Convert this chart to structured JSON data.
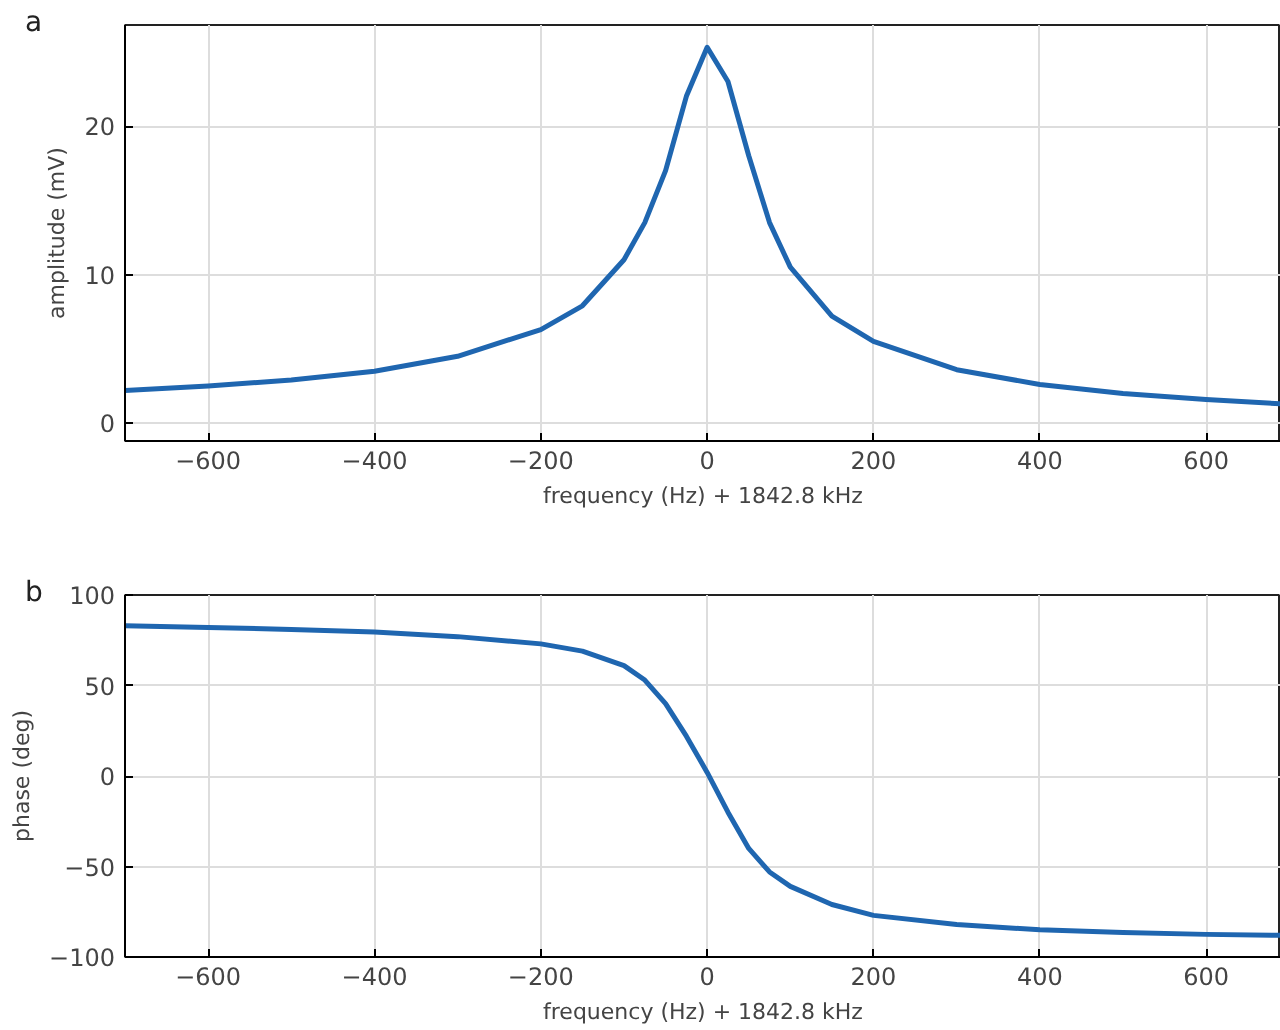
{
  "chart_data": [
    {
      "type": "line",
      "title": "a",
      "xlabel": "frequency (Hz) + 1842.8 kHz",
      "ylabel": "amplitude (mV)",
      "xlim": [
        -700,
        690
      ],
      "ylim": [
        -1.2,
        26.8
      ],
      "xticks": [
        -600,
        -400,
        -200,
        0,
        200,
        400,
        600
      ],
      "yticks": [
        0,
        10,
        20
      ],
      "grid": true,
      "line_style": "solid",
      "series": [
        {
          "color": "#1f66b0",
          "x": [
            -700,
            -600,
            -500,
            -400,
            -300,
            -200,
            -150,
            -100,
            -75,
            -50,
            -25,
            0,
            25,
            50,
            75,
            100,
            150,
            200,
            300,
            400,
            500,
            600,
            690
          ],
          "values": [
            2.2,
            2.5,
            2.9,
            3.5,
            4.5,
            6.3,
            7.9,
            11,
            13.5,
            17,
            22,
            25.3,
            23,
            18,
            13.5,
            10.5,
            7.2,
            5.5,
            3.6,
            2.6,
            2.0,
            1.6,
            1.3
          ]
        }
      ]
    },
    {
      "type": "line",
      "title": "b",
      "xlabel": "frequency (Hz) + 1842.8 kHz",
      "ylabel": "phase (deg)",
      "xlim": [
        -700,
        690
      ],
      "ylim": [
        -100,
        100
      ],
      "xticks": [
        -600,
        -400,
        -200,
        0,
        200,
        400,
        600
      ],
      "yticks": [
        -100,
        -50,
        0,
        50,
        100
      ],
      "grid": true,
      "line_style": "solid",
      "series": [
        {
          "color": "#1f66b0",
          "x": [
            -700,
            -600,
            -500,
            -400,
            -300,
            -200,
            -150,
            -100,
            -75,
            -50,
            -25,
            0,
            25,
            50,
            75,
            100,
            150,
            200,
            300,
            400,
            500,
            600,
            690
          ],
          "values": [
            83,
            82,
            81,
            79.5,
            77,
            73,
            69,
            61,
            53,
            40,
            22,
            2,
            -20,
            -40,
            -53,
            -61,
            -71,
            -77,
            -82,
            -85,
            -86.5,
            -87.5,
            -88
          ]
        }
      ]
    }
  ]
}
